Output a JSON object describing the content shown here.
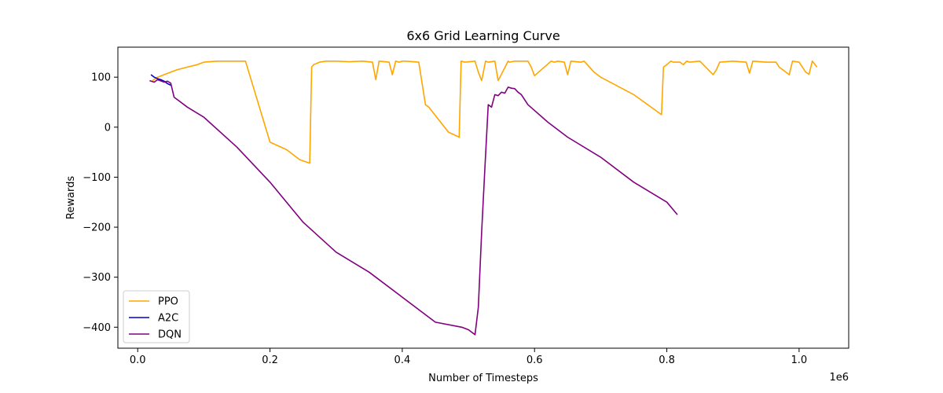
{
  "chart_data": {
    "type": "line",
    "title": "6x6 Grid Learning Curve",
    "xlabel": "Number of Timesteps",
    "ylabel": "Rewards",
    "x_multiplier_label": "1e6",
    "xlim": [
      -0.03,
      1.075
    ],
    "ylim": [
      -442,
      160
    ],
    "x_ticks": [
      0.0,
      0.2,
      0.4,
      0.6,
      0.8,
      1.0
    ],
    "x_tick_labels": [
      "0.0",
      "0.2",
      "0.4",
      "0.6",
      "0.8",
      "1.0"
    ],
    "y_ticks": [
      -400,
      -300,
      -200,
      -100,
      0,
      100
    ],
    "y_tick_labels": [
      "−400",
      "−300",
      "−200",
      "−100",
      "0",
      "100"
    ],
    "grid": false,
    "legend_position": "lower-left",
    "series": [
      {
        "name": "PPO",
        "color": "#FFA500",
        "x": [
          0.022,
          0.03,
          0.04,
          0.05,
          0.06,
          0.075,
          0.09,
          0.1,
          0.12,
          0.14,
          0.163,
          0.2,
          0.225,
          0.245,
          0.26,
          0.263,
          0.266,
          0.275,
          0.285,
          0.3,
          0.32,
          0.34,
          0.355,
          0.36,
          0.365,
          0.38,
          0.385,
          0.39,
          0.395,
          0.4,
          0.405,
          0.425,
          0.435,
          0.44,
          0.47,
          0.486,
          0.489,
          0.495,
          0.51,
          0.515,
          0.52,
          0.526,
          0.53,
          0.54,
          0.545,
          0.56,
          0.562,
          0.57,
          0.59,
          0.595,
          0.6,
          0.625,
          0.63,
          0.635,
          0.645,
          0.65,
          0.655,
          0.67,
          0.675,
          0.69,
          0.7,
          0.75,
          0.792,
          0.795,
          0.8,
          0.806,
          0.81,
          0.82,
          0.825,
          0.83,
          0.835,
          0.85,
          0.87,
          0.875,
          0.88,
          0.9,
          0.92,
          0.925,
          0.93,
          0.95,
          0.965,
          0.97,
          0.985,
          0.99,
          1.0,
          1.01,
          1.015,
          1.02,
          1.027
        ],
        "y": [
          93,
          100,
          105,
          110,
          115,
          120,
          125,
          130,
          132,
          132,
          132,
          -30,
          -45,
          -65,
          -72,
          120,
          125,
          130,
          132,
          132,
          131,
          132,
          130,
          95,
          132,
          130,
          105,
          132,
          130,
          132,
          132,
          130,
          45,
          40,
          -10,
          -20,
          132,
          130,
          132,
          110,
          93,
          132,
          130,
          132,
          93,
          132,
          130,
          132,
          132,
          120,
          103,
          132,
          130,
          132,
          130,
          105,
          132,
          130,
          132,
          110,
          100,
          65,
          25,
          120,
          125,
          132,
          130,
          130,
          125,
          132,
          130,
          132,
          105,
          115,
          130,
          132,
          130,
          108,
          132,
          130,
          130,
          120,
          105,
          132,
          130,
          110,
          106,
          132,
          120
        ]
      },
      {
        "name": "A2C",
        "color": "#0000CC",
        "x": [
          0.02,
          0.025,
          0.03,
          0.035,
          0.04,
          0.045,
          0.05
        ],
        "y": [
          105,
          100,
          97,
          95,
          92,
          87,
          84
        ]
      },
      {
        "name": "DQN",
        "color": "#800080",
        "x": [
          0.018,
          0.025,
          0.03,
          0.04,
          0.045,
          0.05,
          0.055,
          0.075,
          0.1,
          0.15,
          0.2,
          0.25,
          0.3,
          0.35,
          0.4,
          0.45,
          0.49,
          0.5,
          0.51,
          0.515,
          0.52,
          0.525,
          0.53,
          0.535,
          0.54,
          0.545,
          0.55,
          0.555,
          0.56,
          0.565,
          0.57,
          0.575,
          0.58,
          0.59,
          0.62,
          0.65,
          0.7,
          0.75,
          0.8,
          0.816
        ],
        "y": [
          93,
          90,
          95,
          90,
          92,
          88,
          60,
          40,
          20,
          -40,
          -110,
          -190,
          -250,
          -290,
          -340,
          -390,
          -400,
          -405,
          -415,
          -360,
          -210,
          -80,
          45,
          40,
          65,
          63,
          70,
          68,
          80,
          78,
          77,
          70,
          65,
          45,
          10,
          -20,
          -60,
          -110,
          -150,
          -175
        ]
      }
    ]
  }
}
